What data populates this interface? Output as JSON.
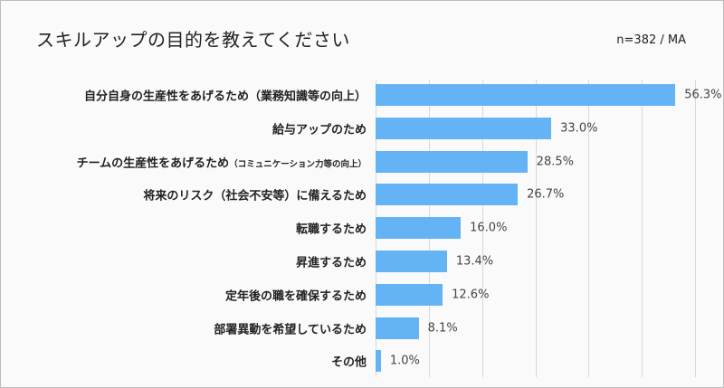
{
  "chart_data": {
    "type": "bar",
    "orientation": "horizontal",
    "title": "スキルアップの目的を教えてください",
    "note": "n=382 / MA",
    "categories": [
      {
        "main": "自分自身の生産性をあげるため（業務知識等の向上）",
        "sub": ""
      },
      {
        "main": "給与アップのため",
        "sub": ""
      },
      {
        "main": "チームの生産性をあげるため",
        "sub": "（コミュニケーション力等の向上）"
      },
      {
        "main": "将来のリスク（社会不安等）に備えるため",
        "sub": ""
      },
      {
        "main": "転職するため",
        "sub": ""
      },
      {
        "main": "昇進するため",
        "sub": ""
      },
      {
        "main": "定年後の職を確保するため",
        "sub": ""
      },
      {
        "main": "部署異動を希望しているため",
        "sub": ""
      },
      {
        "main": "その他",
        "sub": ""
      }
    ],
    "values": [
      56.3,
      33.0,
      28.5,
      26.7,
      16.0,
      13.4,
      12.6,
      8.1,
      1.0
    ],
    "value_labels": [
      "56.3%",
      "33.0%",
      "28.5%",
      "26.7%",
      "16.0%",
      "13.4%",
      "12.6%",
      "8.1%",
      "1.0%"
    ],
    "xlim": [
      0,
      60
    ],
    "grid_step": 10,
    "grid": true,
    "bar_color": "#64b3f4"
  }
}
